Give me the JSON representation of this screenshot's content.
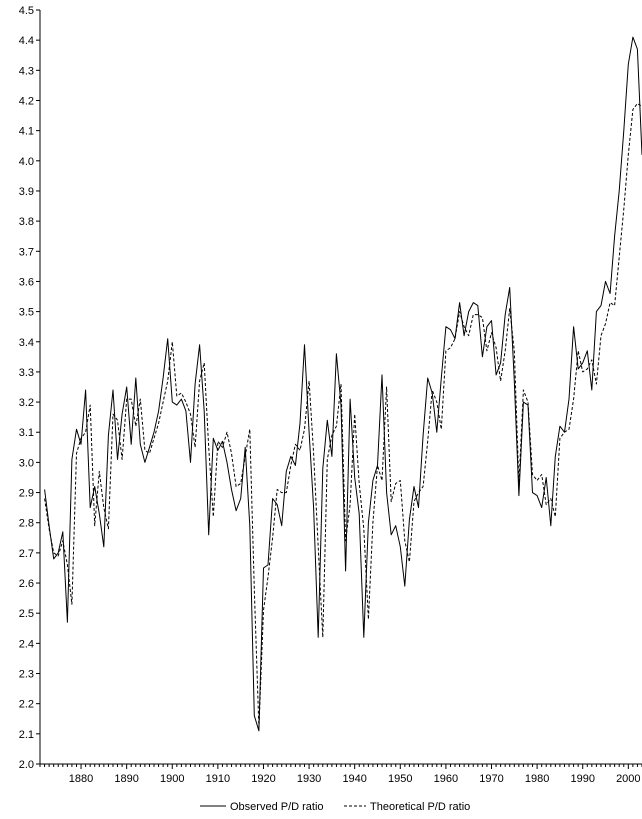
{
  "chart_data": {
    "type": "line",
    "title": "",
    "xlabel": "",
    "ylabel": "",
    "xlim": [
      1871,
      2003
    ],
    "ylim": [
      2.0,
      4.5
    ],
    "x_ticks": [
      1880,
      1890,
      1900,
      1910,
      1920,
      1930,
      1940,
      1950,
      1960,
      1970,
      1980,
      1990,
      2000
    ],
    "y_ticks": [
      "2.0",
      "2.1",
      "2.2",
      "2.3",
      "2.4",
      "2.5",
      "2.6",
      "2.7",
      "2.8",
      "2.9",
      "3.0",
      "3.1",
      "3.2",
      "3.3",
      "3.4",
      "3.5",
      "3.6",
      "3.7",
      "3.8",
      "3.9",
      "4.0",
      "4.1",
      "4.2",
      "4.3",
      "4.4",
      "4.5"
    ],
    "grid": false,
    "legend_position": "bottom-center",
    "x": [
      1872,
      1873,
      1874,
      1875,
      1876,
      1877,
      1878,
      1879,
      1880,
      1881,
      1882,
      1883,
      1884,
      1885,
      1886,
      1887,
      1888,
      1889,
      1890,
      1891,
      1892,
      1893,
      1894,
      1895,
      1896,
      1897,
      1898,
      1899,
      1900,
      1901,
      1902,
      1903,
      1904,
      1905,
      1906,
      1907,
      1908,
      1909,
      1910,
      1911,
      1912,
      1913,
      1914,
      1915,
      1916,
      1917,
      1918,
      1919,
      1920,
      1921,
      1922,
      1923,
      1924,
      1925,
      1926,
      1927,
      1928,
      1929,
      1930,
      1931,
      1932,
      1933,
      1934,
      1935,
      1936,
      1937,
      1938,
      1939,
      1940,
      1941,
      1942,
      1943,
      1944,
      1945,
      1946,
      1947,
      1948,
      1949,
      1950,
      1951,
      1952,
      1953,
      1954,
      1955,
      1956,
      1957,
      1958,
      1959,
      1960,
      1961,
      1962,
      1963,
      1964,
      1965,
      1966,
      1967,
      1968,
      1969,
      1970,
      1971,
      1972,
      1973,
      1974,
      1975,
      1976,
      1977,
      1978,
      1979,
      1980,
      1981,
      1982,
      1983,
      1984,
      1985,
      1986,
      1987,
      1988,
      1989,
      1990,
      1991,
      1992,
      1993,
      1994,
      1995,
      1996,
      1997,
      1998,
      1999,
      2000,
      2001,
      2002,
      2003
    ],
    "series": [
      {
        "name": "Observed P/D ratio",
        "style": "solid",
        "color": "#000000",
        "values": [
          2.91,
          2.79,
          2.68,
          2.7,
          2.77,
          2.47,
          3.01,
          3.11,
          3.06,
          3.24,
          2.85,
          2.92,
          2.83,
          2.72,
          3.09,
          3.24,
          3.01,
          3.16,
          3.25,
          3.06,
          3.28,
          3.06,
          3.0,
          3.05,
          3.1,
          3.17,
          3.28,
          3.41,
          3.2,
          3.19,
          3.21,
          3.17,
          3.0,
          3.26,
          3.39,
          3.17,
          2.76,
          3.08,
          3.04,
          3.07,
          3.0,
          2.91,
          2.84,
          2.88,
          3.05,
          2.79,
          2.16,
          2.11,
          2.65,
          2.66,
          2.88,
          2.86,
          2.79,
          2.97,
          3.02,
          2.99,
          3.13,
          3.39,
          3.1,
          2.85,
          2.42,
          2.98,
          3.14,
          3.02,
          3.36,
          3.19,
          2.64,
          3.21,
          2.95,
          2.83,
          2.42,
          2.8,
          2.94,
          2.99,
          3.29,
          2.9,
          2.76,
          2.79,
          2.72,
          2.59,
          2.81,
          2.92,
          2.85,
          3.09,
          3.28,
          3.23,
          3.1,
          3.28,
          3.45,
          3.44,
          3.41,
          3.53,
          3.42,
          3.5,
          3.53,
          3.52,
          3.35,
          3.45,
          3.47,
          3.29,
          3.33,
          3.49,
          3.58,
          3.27,
          2.89,
          3.2,
          3.19,
          2.9,
          2.89,
          2.85,
          2.95,
          2.79,
          3.02,
          3.12,
          3.1,
          3.21,
          3.45,
          3.31,
          3.33,
          3.37,
          3.24,
          3.5,
          3.52,
          3.6,
          3.56,
          3.75,
          3.9,
          4.1,
          4.32,
          4.41,
          4.37,
          4.02
        ]
      },
      {
        "name": "Theoretical P/D ratio",
        "style": "dashed",
        "color": "#000000",
        "values": [
          2.88,
          2.78,
          2.7,
          2.69,
          2.74,
          2.66,
          2.53,
          3.03,
          3.08,
          3.1,
          3.19,
          2.79,
          2.97,
          2.85,
          2.78,
          3.16,
          3.14,
          3.01,
          3.21,
          3.21,
          3.12,
          3.21,
          3.04,
          3.03,
          3.08,
          3.13,
          3.2,
          3.27,
          3.4,
          3.22,
          3.23,
          3.2,
          3.16,
          3.05,
          3.27,
          3.33,
          3.05,
          2.82,
          3.07,
          3.05,
          3.1,
          3.03,
          2.92,
          2.93,
          3.02,
          3.11,
          2.58,
          2.12,
          2.51,
          2.62,
          2.75,
          2.91,
          2.9,
          2.9,
          2.99,
          3.06,
          3.04,
          3.11,
          3.27,
          3.03,
          2.72,
          2.42,
          3.01,
          3.09,
          3.12,
          3.26,
          2.74,
          2.86,
          3.16,
          2.93,
          2.78,
          2.48,
          2.8,
          2.99,
          2.94,
          3.25,
          2.87,
          2.93,
          2.94,
          2.74,
          2.67,
          2.87,
          2.9,
          2.92,
          3.07,
          3.24,
          3.2,
          3.11,
          3.37,
          3.38,
          3.41,
          3.5,
          3.45,
          3.42,
          3.49,
          3.49,
          3.48,
          3.37,
          3.43,
          3.38,
          3.27,
          3.37,
          3.51,
          3.37,
          2.93,
          3.24,
          3.2,
          2.96,
          2.94,
          2.96,
          2.86,
          2.88,
          2.82,
          3.08,
          3.1,
          3.11,
          3.21,
          3.37,
          3.3,
          3.31,
          3.34,
          3.26,
          3.42,
          3.46,
          3.53,
          3.52,
          3.68,
          3.84,
          4.02,
          4.17,
          4.19,
          4.18
        ]
      }
    ]
  }
}
